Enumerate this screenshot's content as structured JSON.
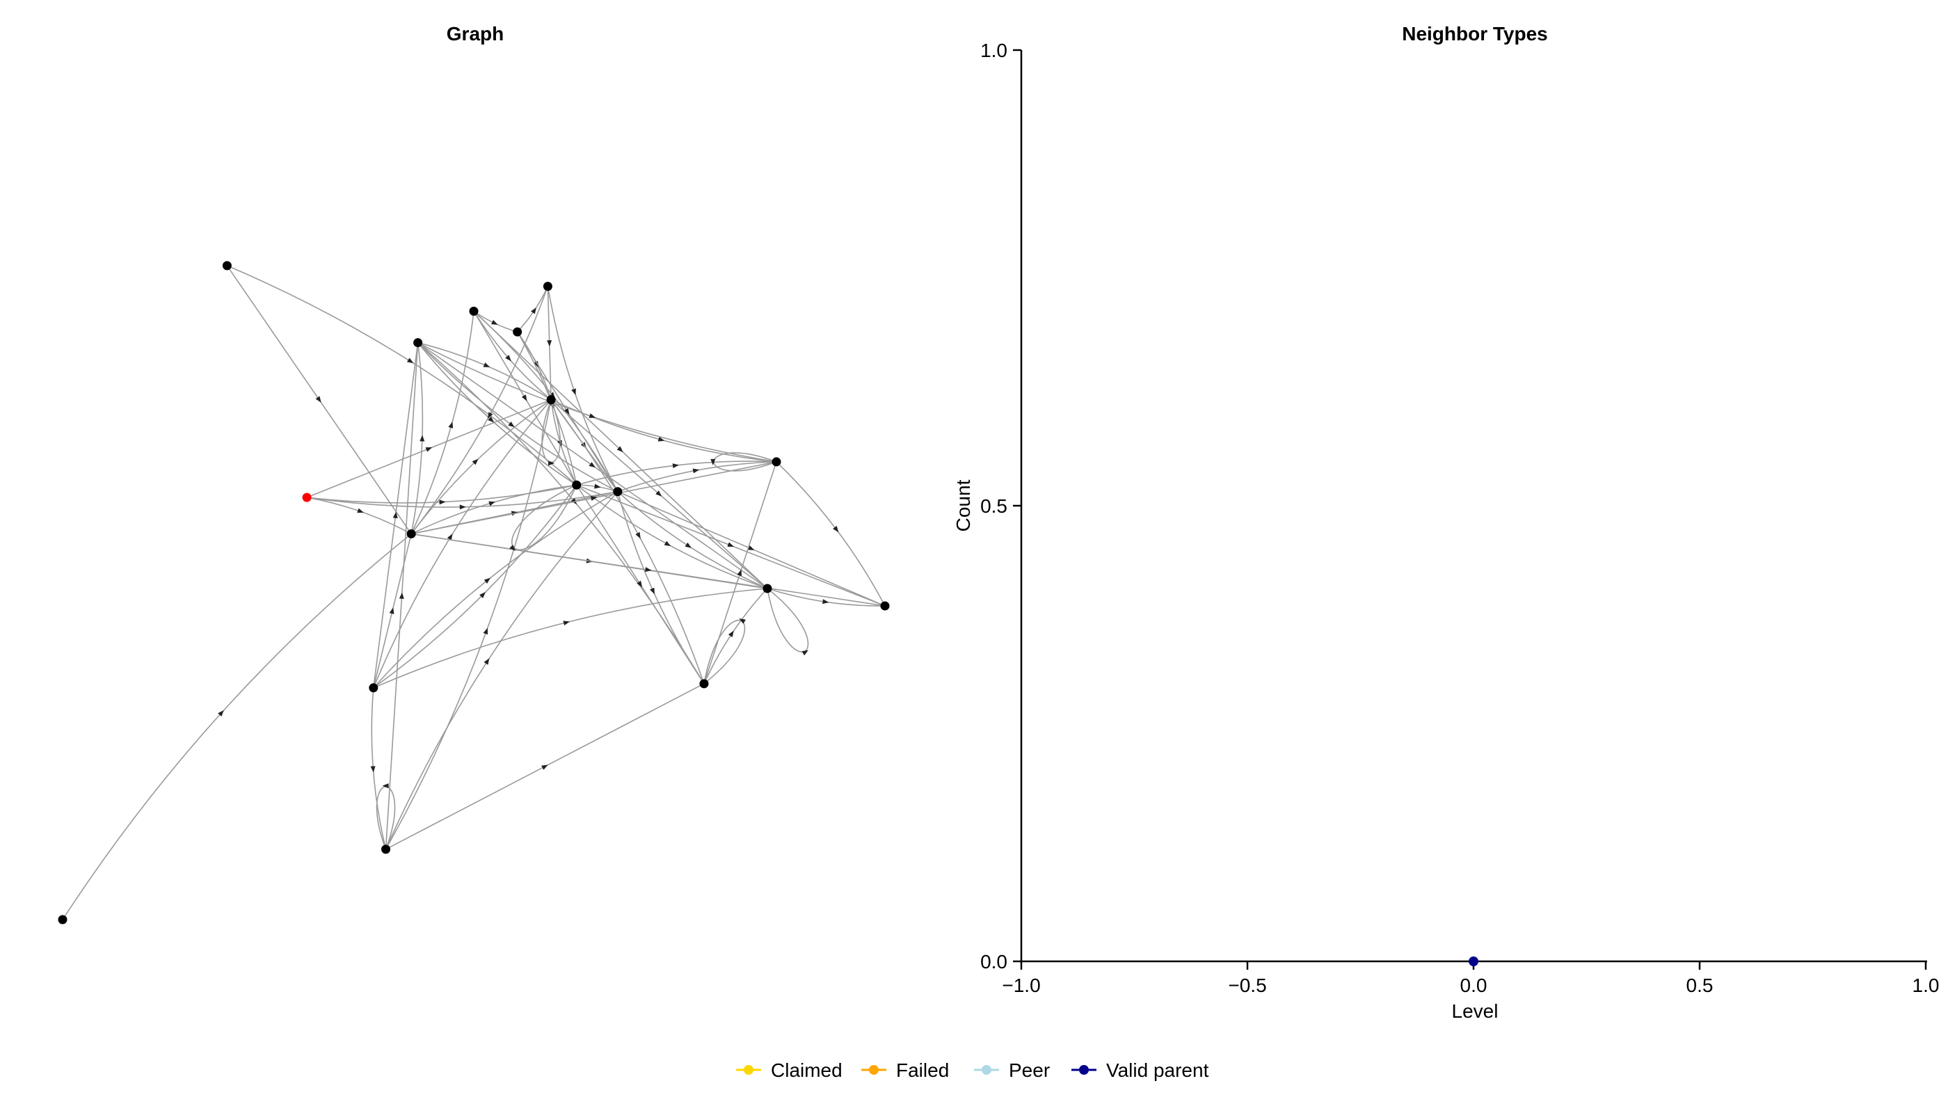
{
  "chart_data": [
    {
      "type": "network",
      "title": "Graph",
      "nodes": [
        {
          "id": 0,
          "x": 0.0,
          "y": 0.0
        },
        {
          "id": 1,
          "x": 0.2,
          "y": 0.79
        },
        {
          "id": 2,
          "x": 0.297,
          "y": 0.51
        },
        {
          "id": 3,
          "x": 0.378,
          "y": 0.28
        },
        {
          "id": 4,
          "x": 0.393,
          "y": 0.085
        },
        {
          "id": 5,
          "x": 0.424,
          "y": 0.466
        },
        {
          "id": 6,
          "x": 0.432,
          "y": 0.697
        },
        {
          "id": 7,
          "x": 0.5,
          "y": 0.735
        },
        {
          "id": 8,
          "x": 0.553,
          "y": 0.71
        },
        {
          "id": 9,
          "x": 0.59,
          "y": 0.765
        },
        {
          "id": 10,
          "x": 0.594,
          "y": 0.628
        },
        {
          "id": 11,
          "x": 0.625,
          "y": 0.525
        },
        {
          "id": 12,
          "x": 0.675,
          "y": 0.517
        },
        {
          "id": 13,
          "x": 0.78,
          "y": 0.285
        },
        {
          "id": 14,
          "x": 0.857,
          "y": 0.4
        },
        {
          "id": 15,
          "x": 0.868,
          "y": 0.553
        },
        {
          "id": 16,
          "x": 1.0,
          "y": 0.379
        }
      ],
      "highlight_node": 2,
      "self_loops": [
        4,
        10,
        11,
        13,
        14,
        15
      ],
      "edges": [
        [
          1,
          11
        ],
        [
          1,
          5
        ],
        [
          2,
          11
        ],
        [
          2,
          5
        ],
        [
          2,
          10
        ],
        [
          2,
          12
        ],
        [
          3,
          10
        ],
        [
          3,
          5
        ],
        [
          3,
          11
        ],
        [
          3,
          14
        ],
        [
          3,
          6
        ],
        [
          3,
          4
        ],
        [
          0,
          5
        ],
        [
          4,
          6
        ],
        [
          4,
          10
        ],
        [
          4,
          12
        ],
        [
          4,
          13
        ],
        [
          5,
          6
        ],
        [
          5,
          10
        ],
        [
          5,
          12
        ],
        [
          5,
          7
        ],
        [
          5,
          11
        ],
        [
          5,
          14
        ],
        [
          6,
          11
        ],
        [
          6,
          10
        ],
        [
          6,
          14
        ],
        [
          6,
          12
        ],
        [
          6,
          13
        ],
        [
          7,
          11
        ],
        [
          7,
          10
        ],
        [
          7,
          12
        ],
        [
          7,
          14
        ],
        [
          7,
          8
        ],
        [
          8,
          10
        ],
        [
          8,
          12
        ],
        [
          8,
          9
        ],
        [
          8,
          11
        ],
        [
          9,
          10
        ],
        [
          9,
          12
        ],
        [
          9,
          5
        ],
        [
          10,
          12
        ],
        [
          10,
          11
        ],
        [
          10,
          13
        ],
        [
          10,
          14
        ],
        [
          10,
          15
        ],
        [
          11,
          12
        ],
        [
          11,
          13
        ],
        [
          11,
          14
        ],
        [
          11,
          15
        ],
        [
          11,
          16
        ],
        [
          12,
          14
        ],
        [
          12,
          15
        ],
        [
          12,
          16
        ],
        [
          12,
          13
        ],
        [
          13,
          14
        ],
        [
          13,
          15
        ],
        [
          14,
          16
        ],
        [
          15,
          16
        ],
        [
          5,
          15
        ],
        [
          6,
          15
        ],
        [
          3,
          12
        ],
        [
          5,
          16
        ]
      ]
    },
    {
      "type": "scatter",
      "title": "Neighbor Types",
      "xlabel": "Level",
      "ylabel": "Count",
      "xlim": [
        -1.0,
        1.0
      ],
      "ylim": [
        0.0,
        1.0
      ],
      "xticks": [
        "−1.0",
        "−0.5",
        "0.0",
        "0.5",
        "1.0"
      ],
      "xtick_values": [
        -1.0,
        -0.5,
        0.0,
        0.5,
        1.0
      ],
      "yticks": [
        "0.0",
        "0.5",
        "1.0"
      ],
      "ytick_values": [
        0.0,
        0.5,
        1.0
      ],
      "grid": false,
      "series": [
        {
          "name": "Claimed",
          "color": "#ffd700",
          "points": []
        },
        {
          "name": "Failed",
          "color": "#ffa500",
          "points": []
        },
        {
          "name": "Peer",
          "color": "#add8e6",
          "points": []
        },
        {
          "name": "Valid parent",
          "color": "#00008b",
          "points": [
            [
              0.0,
              0.0
            ]
          ]
        }
      ],
      "legend_position": "bottom"
    }
  ]
}
